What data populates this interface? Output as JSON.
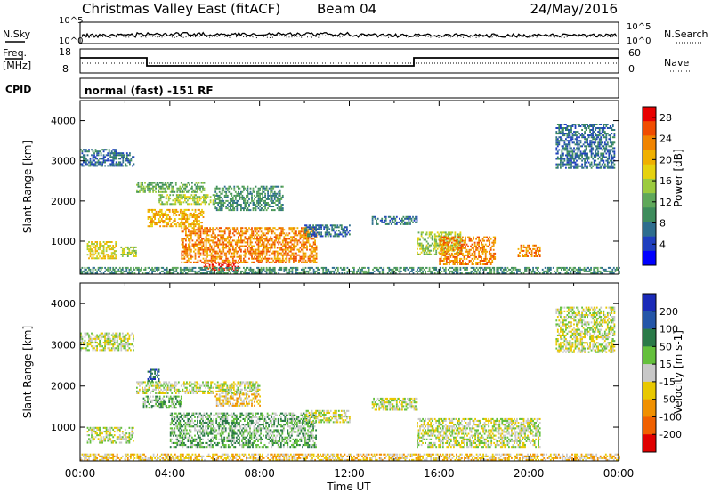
{
  "header": {
    "station": "Christmas Valley East (fitACF)",
    "beam": "Beam 04",
    "date": "24/May/2016"
  },
  "top_panels": {
    "nsky_label": "N.Sky",
    "nsearch_label": "N.Search",
    "n_ticks_left": [
      "10^5",
      "10^0"
    ],
    "n_ticks_right": [
      "10^5",
      "10^0"
    ],
    "freq_label_1": "Freq.",
    "freq_label_2": "[MHz]",
    "freq_ticks": [
      "18",
      "8"
    ],
    "nave_label": "Nave",
    "nave_ticks": [
      "60",
      "0"
    ],
    "cpid_label": "CPID",
    "cpid_value": "normal (fast) -151 RF"
  },
  "chart_data": [
    {
      "type": "heatmap",
      "name": "power",
      "ylabel": "Slant Range [km]",
      "xlabel": "Time UT",
      "xlim": [
        0,
        24
      ],
      "ylim": [
        180,
        4500
      ],
      "y_ticks": [
        1000,
        2000,
        3000,
        4000
      ],
      "x_ticks": [
        "00:00",
        "04:00",
        "08:00",
        "12:00",
        "16:00",
        "20:00",
        "00:00"
      ],
      "colorbar": {
        "label": "Power [dB]",
        "ticks": [
          "4",
          "8",
          "12",
          "16",
          "20",
          "24",
          "28"
        ],
        "colors": [
          "#0000ff",
          "#1f3fbf",
          "#2e6e8e",
          "#3e8c5c",
          "#5fa85a",
          "#9ccb3e",
          "#e6d20e",
          "#f0b000",
          "#f08400",
          "#f04c00",
          "#e80000"
        ]
      },
      "regions": [
        {
          "t0": 0.0,
          "t1": 1.6,
          "r0": 2850,
          "r1": 3300,
          "level": 2
        },
        {
          "t0": 1.4,
          "t1": 2.4,
          "r0": 2850,
          "r1": 3200,
          "level": 2
        },
        {
          "t0": 2.5,
          "t1": 5.5,
          "r0": 2200,
          "r1": 2450,
          "level": 4
        },
        {
          "t0": 3.0,
          "t1": 5.5,
          "r0": 1350,
          "r1": 1800,
          "level": 7
        },
        {
          "t0": 3.5,
          "t1": 6.0,
          "r0": 1900,
          "r1": 2150,
          "level": 5
        },
        {
          "t0": 6.0,
          "t1": 9.0,
          "r0": 1750,
          "r1": 2350,
          "level": 3
        },
        {
          "t0": 0.3,
          "t1": 1.6,
          "r0": 550,
          "r1": 1000,
          "level": 6
        },
        {
          "t0": 1.8,
          "t1": 2.5,
          "r0": 600,
          "r1": 850,
          "level": 5
        },
        {
          "t0": 4.5,
          "t1": 10.5,
          "r0": 450,
          "r1": 1350,
          "level": 8
        },
        {
          "t0": 5.5,
          "t1": 7.0,
          "r0": 250,
          "r1": 450,
          "level": 10
        },
        {
          "t0": 10.0,
          "t1": 12.0,
          "r0": 1100,
          "r1": 1400,
          "level": 2
        },
        {
          "t0": 13.0,
          "t1": 15.0,
          "r0": 1400,
          "r1": 1600,
          "level": 2
        },
        {
          "t0": 15.0,
          "t1": 17.0,
          "r0": 650,
          "r1": 1200,
          "level": 5
        },
        {
          "t0": 16.0,
          "t1": 18.5,
          "r0": 400,
          "r1": 1100,
          "level": 8
        },
        {
          "t0": 19.5,
          "t1": 20.5,
          "r0": 600,
          "r1": 900,
          "level": 8
        },
        {
          "t0": 21.2,
          "t1": 23.8,
          "r0": 2800,
          "r1": 3900,
          "level": 2
        },
        {
          "t0": 0.0,
          "t1": 24.0,
          "r0": 180,
          "r1": 350,
          "level": 3
        }
      ]
    },
    {
      "type": "heatmap",
      "name": "velocity",
      "ylabel": "Slant Range [km]",
      "xlabel": "Time UT",
      "xlim": [
        0,
        24
      ],
      "ylim": [
        180,
        4500
      ],
      "y_ticks": [
        1000,
        2000,
        3000,
        4000
      ],
      "x_ticks": [
        "00:00",
        "04:00",
        "08:00",
        "12:00",
        "16:00",
        "20:00",
        "00:00"
      ],
      "colorbar": {
        "label": "Velocity [m s-1]",
        "ticks": [
          "200",
          "100",
          "50",
          "15",
          "-15",
          "-50",
          "-100",
          "-200"
        ],
        "colors": [
          "#1a2ab8",
          "#2456a8",
          "#2a7a48",
          "#64c03c",
          "#c8c8c8",
          "#e8c800",
          "#f09000",
          "#f06000",
          "#e00000"
        ]
      },
      "regions": [
        {
          "t0": 0.0,
          "t1": 2.4,
          "r0": 2850,
          "r1": 3300,
          "level": 4
        },
        {
          "t0": 2.5,
          "t1": 8.0,
          "r0": 1800,
          "r1": 2100,
          "level": 4
        },
        {
          "t0": 3.0,
          "t1": 3.5,
          "r0": 2100,
          "r1": 2400,
          "level": 1
        },
        {
          "t0": 2.8,
          "t1": 4.5,
          "r0": 1450,
          "r1": 1750,
          "level": 3
        },
        {
          "t0": 4.0,
          "t1": 10.5,
          "r0": 500,
          "r1": 1350,
          "level": 3
        },
        {
          "t0": 6.0,
          "t1": 8.0,
          "r0": 1500,
          "r1": 1800,
          "level": 5
        },
        {
          "t0": 0.3,
          "t1": 2.4,
          "r0": 600,
          "r1": 1000,
          "level": 4
        },
        {
          "t0": 10.0,
          "t1": 12.0,
          "r0": 1100,
          "r1": 1400,
          "level": 4
        },
        {
          "t0": 13.0,
          "t1": 15.0,
          "r0": 1400,
          "r1": 1700,
          "level": 4
        },
        {
          "t0": 15.0,
          "t1": 20.5,
          "r0": 500,
          "r1": 1200,
          "level": 4
        },
        {
          "t0": 21.2,
          "t1": 23.8,
          "r0": 2800,
          "r1": 3900,
          "level": 4
        },
        {
          "t0": 0.0,
          "t1": 24.0,
          "r0": 180,
          "r1": 350,
          "level": 5
        }
      ]
    }
  ]
}
